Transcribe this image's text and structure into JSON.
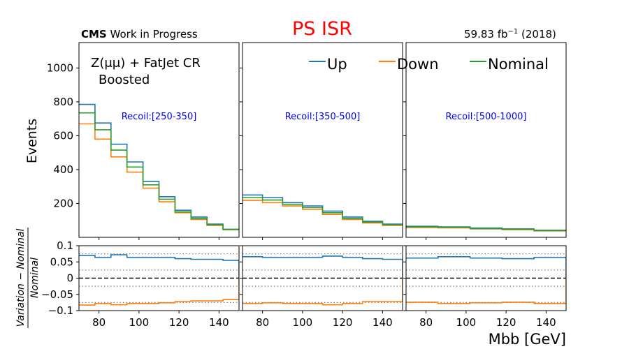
{
  "header": {
    "experiment": "CMS",
    "status": " Work in Progress",
    "title": "PS ISR",
    "lumi_value": "59.83 fb",
    "lumi_exp": "−1",
    "lumi_year": " (2018)"
  },
  "colors": {
    "up": "#1f77b4",
    "down": "#ff7f0e",
    "nominal": "#2ca02c",
    "title": "#ff0000",
    "annotation": "#0000ff"
  },
  "chart_data": [
    {
      "type": "line",
      "drawstyle": "steps",
      "region_label_line1": "Z(μμ) + FatJet CR",
      "region_label_line2": "Boosted",
      "annotation": "Recoil:[250-350]",
      "ylabel": "Events",
      "ylim": [
        0,
        1150
      ],
      "yticks": [
        200,
        400,
        600,
        800,
        1000
      ],
      "xlim": [
        70,
        150
      ],
      "bin_edges": [
        70,
        78,
        86,
        94,
        102,
        110,
        118,
        126,
        134,
        142,
        150
      ],
      "series": [
        {
          "name": "Up",
          "color_key": "up",
          "values": [
            785,
            675,
            550,
            445,
            330,
            240,
            160,
            120,
            78,
            48
          ]
        },
        {
          "name": "Down",
          "color_key": "down",
          "values": [
            670,
            580,
            475,
            385,
            290,
            210,
            145,
            105,
            70,
            45
          ]
        },
        {
          "name": "Nominal",
          "color_key": "nominal",
          "values": [
            735,
            635,
            515,
            415,
            310,
            225,
            150,
            112,
            74,
            46
          ]
        }
      ]
    },
    {
      "type": "line",
      "drawstyle": "steps",
      "annotation": "Recoil:[350-500]",
      "ylim": [
        0,
        1150
      ],
      "xlim": [
        70,
        150
      ],
      "bin_edges": [
        70,
        80,
        90,
        100,
        110,
        120,
        130,
        140,
        150
      ],
      "series": [
        {
          "name": "Up",
          "color_key": "up",
          "values": [
            250,
            235,
            205,
            185,
            155,
            120,
            95,
            78
          ]
        },
        {
          "name": "Down",
          "color_key": "down",
          "values": [
            218,
            205,
            185,
            165,
            135,
            105,
            85,
            70
          ]
        },
        {
          "name": "Nominal",
          "color_key": "nominal",
          "values": [
            235,
            220,
            195,
            175,
            145,
            112,
            90,
            74
          ]
        }
      ]
    },
    {
      "type": "line",
      "drawstyle": "steps",
      "annotation": "Recoil:[500-1000]",
      "ylim": [
        0,
        1150
      ],
      "xlim": [
        70,
        150
      ],
      "bin_edges": [
        70,
        86,
        102,
        118,
        134,
        150
      ],
      "series": [
        {
          "name": "Up",
          "color_key": "up",
          "values": [
            65,
            62,
            55,
            50,
            42
          ]
        },
        {
          "name": "Down",
          "color_key": "down",
          "values": [
            58,
            56,
            50,
            45,
            38
          ]
        },
        {
          "name": "Nominal",
          "color_key": "nominal",
          "values": [
            62,
            59,
            52,
            48,
            40
          ]
        }
      ]
    },
    {
      "type": "line",
      "drawstyle": "steps",
      "ylabel": "Variation − Nominal / Nominal",
      "ylim": [
        -0.1,
        0.1
      ],
      "yticks": [
        -0.1,
        -0.05,
        0,
        0.05,
        0.1
      ],
      "ytick_labels": [
        "−0.1",
        "−0.05",
        "0",
        "0.05",
        "0.1"
      ],
      "xlim": [
        70,
        150
      ],
      "xticks": [
        80,
        100,
        120,
        140
      ],
      "bin_edges": [
        70,
        78,
        86,
        94,
        102,
        110,
        118,
        126,
        134,
        142,
        150
      ],
      "series": [
        {
          "name": "Up",
          "color_key": "up",
          "values": [
            0.07,
            0.064,
            0.072,
            0.064,
            0.064,
            0.064,
            0.06,
            0.058,
            0.058,
            0.055
          ]
        },
        {
          "name": "Down",
          "color_key": "down",
          "values": [
            -0.083,
            -0.078,
            -0.082,
            -0.078,
            -0.078,
            -0.076,
            -0.072,
            -0.07,
            -0.07,
            -0.066
          ]
        }
      ]
    },
    {
      "type": "line",
      "drawstyle": "steps",
      "ylim": [
        -0.1,
        0.1
      ],
      "xlim": [
        70,
        150
      ],
      "xticks": [
        80,
        100,
        120,
        140
      ],
      "bin_edges": [
        70,
        80,
        90,
        100,
        110,
        120,
        130,
        140,
        150
      ],
      "series": [
        {
          "name": "Up",
          "color_key": "up",
          "values": [
            0.066,
            0.064,
            0.064,
            0.064,
            0.068,
            0.064,
            0.06,
            0.058
          ]
        },
        {
          "name": "Down",
          "color_key": "down",
          "values": [
            -0.078,
            -0.076,
            -0.078,
            -0.078,
            -0.082,
            -0.078,
            -0.072,
            -0.072
          ]
        }
      ]
    },
    {
      "type": "line",
      "drawstyle": "steps",
      "xlabel": "Mbb [GeV]",
      "ylim": [
        -0.1,
        0.1
      ],
      "xlim": [
        70,
        150
      ],
      "xticks": [
        80,
        100,
        120,
        140
      ],
      "bin_edges": [
        70,
        86,
        102,
        118,
        134,
        150
      ],
      "series": [
        {
          "name": "Up",
          "color_key": "up",
          "values": [
            0.062,
            0.066,
            0.062,
            0.06,
            0.064
          ]
        },
        {
          "name": "Down",
          "color_key": "down",
          "values": [
            -0.074,
            -0.078,
            -0.076,
            -0.074,
            -0.078
          ]
        }
      ]
    }
  ]
}
